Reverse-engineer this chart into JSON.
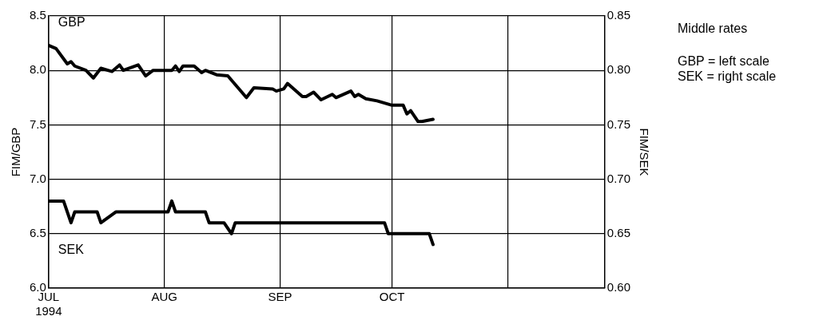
{
  "chart_data": {
    "type": "line",
    "ylabel": "FIM/GBP",
    "y2label": "FIM/SEK",
    "xlim": [
      "1994-07-01",
      "1994-11-27"
    ],
    "xticks": [
      {
        "value": "1994-07-01",
        "label": "JUL 1994"
      },
      {
        "value": "1994-08-01",
        "label": "AUG"
      },
      {
        "value": "1994-09-01",
        "label": "SEP"
      },
      {
        "value": "1994-10-01",
        "label": "OCT"
      },
      {
        "value": "1994-11-01",
        "label": null
      }
    ],
    "ylim": [
      6,
      8.5
    ],
    "yticks": [
      {
        "value": 6,
        "label": "6.0"
      },
      {
        "value": 6.5,
        "label": "6.5"
      },
      {
        "value": 7,
        "label": "7.0"
      },
      {
        "value": 7.5,
        "label": "7.5"
      },
      {
        "value": 8,
        "label": "8.0"
      },
      {
        "value": 8.5,
        "label": "8.5"
      }
    ],
    "y2lim": [
      0.6,
      0.85
    ],
    "y2ticks": [
      {
        "value": 0.6,
        "label": "0.60"
      },
      {
        "value": 0.65,
        "label": "0.65"
      },
      {
        "value": 0.7,
        "label": "0.70"
      },
      {
        "value": 0.75,
        "label": "0.75"
      },
      {
        "value": 0.8,
        "label": "0.80"
      },
      {
        "value": 0.85,
        "label": "0.85"
      }
    ],
    "grid": true,
    "marker": "none",
    "line_style": "solid",
    "annotations": [
      "Middle rates",
      "GBP = left scale",
      "SEK = right scale"
    ],
    "series": [
      {
        "name": "GBP",
        "color": "#000000",
        "x": [
          "1994-07-01",
          "1994-07-03",
          "1994-07-06",
          "1994-07-07",
          "1994-07-08",
          "1994-07-11",
          "1994-07-13",
          "1994-07-15",
          "1994-07-18",
          "1994-07-20",
          "1994-07-21",
          "1994-07-25",
          "1994-07-27",
          "1994-07-29",
          "1994-08-03",
          "1994-08-04",
          "1994-08-05",
          "1994-08-06",
          "1994-08-09",
          "1994-08-11",
          "1994-08-12",
          "1994-08-15",
          "1994-08-18",
          "1994-08-23",
          "1994-08-25",
          "1994-08-30",
          "1994-08-31",
          "1994-09-02",
          "1994-09-03",
          "1994-09-07",
          "1994-09-08",
          "1994-09-10",
          "1994-09-12",
          "1994-09-15",
          "1994-09-16",
          "1994-09-20",
          "1994-09-21",
          "1994-09-22",
          "1994-09-24",
          "1994-09-27",
          "1994-10-01",
          "1994-10-04",
          "1994-10-05",
          "1994-10-06",
          "1994-10-08",
          "1994-10-09",
          "1994-10-12"
        ],
        "values": [
          8.23,
          8.2,
          8.06,
          8.08,
          8.04,
          8.0,
          7.93,
          8.02,
          7.99,
          8.05,
          8.0,
          8.05,
          7.95,
          8.0,
          8.0,
          8.04,
          7.99,
          8.04,
          8.04,
          7.98,
          8.0,
          7.96,
          7.95,
          7.75,
          7.84,
          7.83,
          7.81,
          7.83,
          7.88,
          7.76,
          7.76,
          7.8,
          7.73,
          7.78,
          7.75,
          7.81,
          7.76,
          7.78,
          7.74,
          7.72,
          7.68,
          7.68,
          7.6,
          7.63,
          7.53,
          7.53,
          7.55
        ]
      },
      {
        "name": "SEK",
        "color": "#000000",
        "axis": "y2",
        "x": [
          "1994-07-01",
          "1994-07-05",
          "1994-07-07",
          "1994-07-08",
          "1994-07-14",
          "1994-07-15",
          "1994-07-19",
          "1994-08-02",
          "1994-08-03",
          "1994-08-04",
          "1994-08-12",
          "1994-08-13",
          "1994-08-17",
          "1994-08-19",
          "1994-08-20",
          "1994-09-29",
          "1994-09-30",
          "1994-10-11",
          "1994-10-12"
        ],
        "values": [
          0.68,
          0.68,
          0.66,
          0.67,
          0.67,
          0.66,
          0.67,
          0.67,
          0.68,
          0.67,
          0.67,
          0.66,
          0.66,
          0.65,
          0.66,
          0.66,
          0.65,
          0.65,
          0.64
        ]
      }
    ]
  }
}
